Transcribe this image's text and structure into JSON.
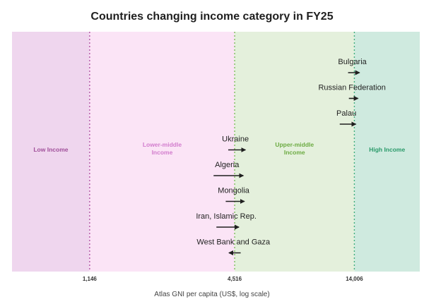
{
  "chart_data": {
    "type": "arrow",
    "title": "Countries changing income category in FY25",
    "xlabel": "Atlas GNI per capita (US$, log scale)",
    "xscale": "log",
    "xlim": [
      550,
      26000
    ],
    "thresholds": [
      {
        "value": 1146,
        "label": "1,146",
        "color": "#b356a6"
      },
      {
        "value": 4516,
        "label": "4,516",
        "color": "#7cbf5a"
      },
      {
        "value": 14006,
        "label": "14,006",
        "color": "#3fae7c"
      }
    ],
    "bands": [
      {
        "label": [
          "Low Income"
        ],
        "color": "#efd6ee",
        "text_color": "#a04f9a"
      },
      {
        "label": [
          "Lower-middle",
          "Income"
        ],
        "color": "#fbe4f6",
        "text_color": "#d27ccd"
      },
      {
        "label": [
          "Upper-middle",
          "Income"
        ],
        "color": "#e4f0dc",
        "text_color": "#6cab42"
      },
      {
        "label": [
          "High Income"
        ],
        "color": "#cfeadf",
        "text_color": "#2a9a6a"
      }
    ],
    "series": [
      {
        "country": "Bulgaria",
        "from": 13200,
        "to": 14700
      },
      {
        "country": "Russian Federation",
        "from": 13300,
        "to": 14500
      },
      {
        "country": "Palau",
        "from": 12200,
        "to": 14200
      },
      {
        "country": "Ukraine",
        "from": 4250,
        "to": 5000
      },
      {
        "country": "Algeria",
        "from": 3700,
        "to": 4900
      },
      {
        "country": "Mongolia",
        "from": 4150,
        "to": 4950
      },
      {
        "country": "Iran, Islamic Rep.",
        "from": 3800,
        "to": 4700
      },
      {
        "country": "West Bank and Gaza",
        "from": 4780,
        "to": 4280
      }
    ]
  }
}
